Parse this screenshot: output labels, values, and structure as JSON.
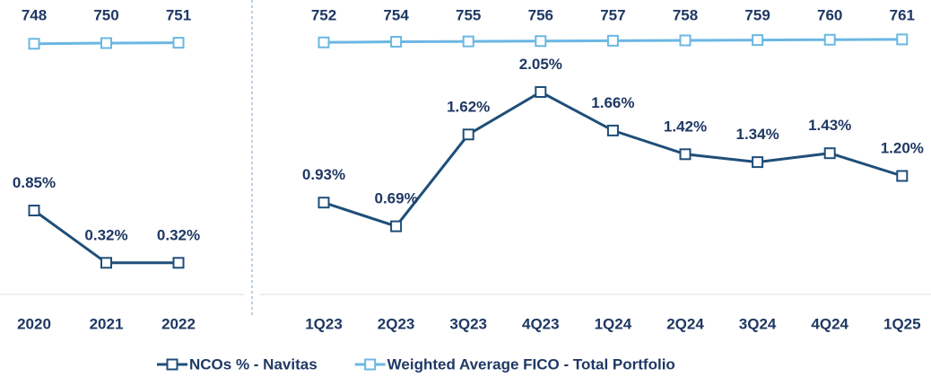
{
  "chart_data": [
    {
      "type": "line",
      "categories": [
        "2020",
        "2021",
        "2022"
      ],
      "series": [
        {
          "name": "NCOs % - Navitas",
          "color": "#1f4e79",
          "values": [
            0.85,
            0.32,
            0.32
          ],
          "value_labels": [
            "0.85%",
            "0.32%",
            "0.32%"
          ]
        },
        {
          "name": "Weighted Average FICO - Total Portfolio",
          "color": "#6bb7e3",
          "values": [
            748,
            750,
            751
          ],
          "axis": "y2"
        }
      ],
      "ylim": [
        0,
        2.8
      ],
      "y2lim": [
        0,
        825
      ]
    },
    {
      "type": "line",
      "categories": [
        "1Q23",
        "2Q23",
        "3Q23",
        "4Q23",
        "1Q24",
        "2Q24",
        "3Q24",
        "4Q24",
        "1Q25"
      ],
      "series": [
        {
          "color": "#1f4e79",
          "values": [
            0.93,
            0.69,
            1.62,
            2.05,
            1.66,
            1.42,
            1.34,
            1.43,
            1.2
          ],
          "value_labels": [
            "0.93%",
            "0.69%",
            "1.62%",
            "2.05%",
            "1.66%",
            "1.42%",
            "1.34%",
            "1.43%",
            "1.20%"
          ]
        },
        {
          "color": "#6bb7e3",
          "values": [
            752,
            754,
            755,
            756,
            757,
            758,
            759,
            760,
            761
          ],
          "axis": "y2"
        }
      ],
      "ylim": [
        0,
        2.8
      ],
      "y2lim": [
        0,
        825
      ]
    }
  ]
}
